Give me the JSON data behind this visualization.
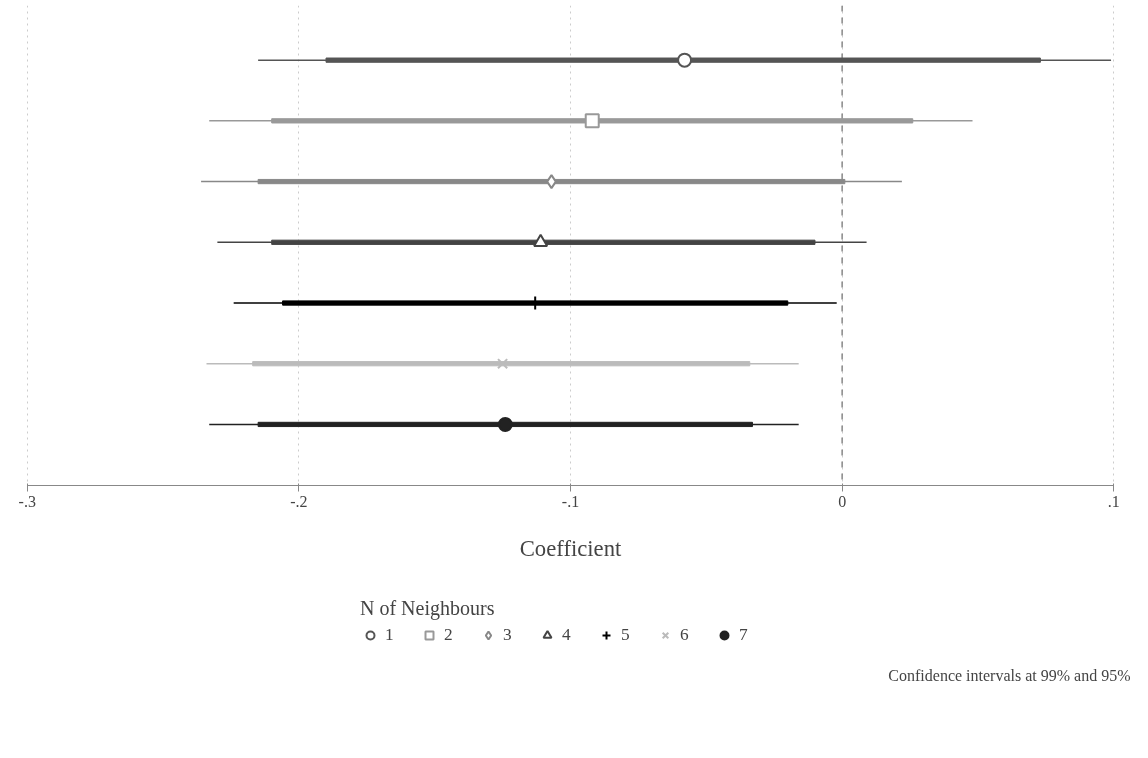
{
  "chart_data": {
    "type": "box",
    "orientation": "horizontal",
    "categories": [
      null,
      null,
      null,
      null,
      null,
      null,
      null
    ],
    "xlabel": "Coefficient",
    "legend_title": "N of Neighbours",
    "legend": "bottom",
    "grid": "x",
    "tick_labels": "x",
    "xlim": [
      -0.3,
      0.1
    ],
    "xticks": [
      {
        "value": -0.3,
        "label": "-.3"
      },
      {
        "value": -0.2,
        "label": "-.2"
      },
      {
        "value": -0.1,
        "label": "-.1"
      },
      0,
      {
        "value": 0.1,
        "label": ".1"
      }
    ],
    "ref_lines": [
      {
        "axis": "x",
        "value": 0,
        "label": null,
        "color": "#888888",
        "line_style": "dashed"
      }
    ],
    "annotations": [
      "Confidence intervals at 99% and 95%"
    ],
    "series": [
      {
        "name": "1",
        "color": "#555555",
        "marker": "circle",
        "boxes": [
          {
            "low": -0.215,
            "q1": -0.19,
            "median": -0.058,
            "q3": 0.073,
            "high": 0.099
          },
          null,
          null,
          null,
          null,
          null,
          null
        ]
      },
      {
        "name": "2",
        "color": "#999999",
        "marker": "square",
        "boxes": [
          null,
          {
            "low": -0.233,
            "q1": -0.21,
            "median": -0.092,
            "q3": 0.026,
            "high": 0.048
          },
          null,
          null,
          null,
          null,
          null
        ]
      },
      {
        "name": "3",
        "color": "#888888",
        "marker": "diamond",
        "boxes": [
          null,
          null,
          {
            "low": -0.236,
            "q1": -0.215,
            "median": -0.107,
            "q3": 0.001,
            "high": 0.022
          },
          null,
          null,
          null,
          null
        ]
      },
      {
        "name": "4",
        "color": "#444444",
        "marker": "triangle",
        "boxes": [
          null,
          null,
          null,
          {
            "low": -0.23,
            "q1": -0.21,
            "median": -0.111,
            "q3": -0.01,
            "high": 0.009
          },
          null,
          null,
          null
        ]
      },
      {
        "name": "5",
        "color": "#000000",
        "marker": "cross",
        "boxes": [
          null,
          null,
          null,
          null,
          {
            "low": -0.224,
            "q1": -0.206,
            "median": -0.113,
            "q3": -0.02,
            "high": -0.002
          },
          null,
          null
        ]
      },
      {
        "name": "6",
        "color": "#bbbbbb",
        "marker": "x",
        "boxes": [
          null,
          null,
          null,
          null,
          null,
          {
            "low": -0.234,
            "q1": -0.217,
            "median": -0.125,
            "q3": -0.034,
            "high": -0.016
          },
          null
        ]
      },
      {
        "name": "7",
        "color": "#222222",
        "marker": "filled_circle",
        "boxes": [
          null,
          null,
          null,
          null,
          null,
          null,
          {
            "low": -0.233,
            "q1": -0.215,
            "median": -0.124,
            "q3": -0.033,
            "high": -0.016
          }
        ]
      }
    ]
  }
}
